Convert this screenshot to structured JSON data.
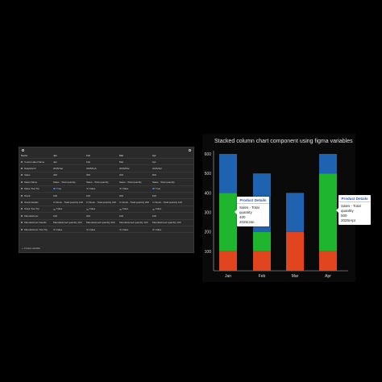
{
  "panel": {
    "columns": [
      "Name",
      "Jan",
      "Feb",
      "Mar",
      "Apr"
    ],
    "rows": [
      {
        "name": "X-axis Label Name",
        "cells": [
          "Jan",
          "Feb",
          "Mar",
          "Apr"
        ]
      },
      {
        "name": "DateMonth",
        "cells": [
          "2025/Jan",
          "2025/Feb",
          "2025/Mar",
          "2025/Apr"
        ]
      },
      {
        "name": "Sales",
        "cells": [
          "400",
          "300",
          "200",
          "500"
        ]
      },
      {
        "name": "Sales Name",
        "cells": [
          "Sales - Total quantity",
          "Sales - Total quantity",
          "Sales - Total quantity",
          "Sales - Total quantity"
        ]
      },
      {
        "name": "Sales Tool Tip",
        "toggle": true,
        "cells": [
          "True",
          "False",
          "False",
          "True"
        ]
      },
      {
        "name": "Stock",
        "cells": [
          "100",
          "100",
          "200",
          "100"
        ]
      },
      {
        "name": "Stock Details",
        "cells": [
          "In Stock - Total quantity 100",
          "In Stock - Total quantity 100",
          "In Stock - Total quantity 200",
          "In Stock - Total quantity 100"
        ]
      },
      {
        "name": "Stock Tool Tip",
        "toggle": true,
        "cells": [
          "False",
          "False",
          "False",
          "False"
        ]
      },
      {
        "name": "Manufacturer",
        "cells": [
          "100",
          "200",
          "100",
          "100"
        ]
      },
      {
        "name": "Manufacturer Details",
        "cells": [
          "Manufactured quantity 100",
          "Manufactured quantity 200",
          "Manufactured quantity 100",
          "Manufactured quantity 100"
        ]
      },
      {
        "name": "Manufacturer Tool Tip",
        "toggle": true,
        "cells": [
          "False",
          "False",
          "False",
          "False"
        ]
      }
    ],
    "footer": "+ Create variable"
  },
  "chart_data": {
    "type": "bar",
    "stacked": true,
    "title": "Stacked column chart component using figma variables",
    "categories": [
      "Jan",
      "Feb",
      "Mar",
      "Apr"
    ],
    "series": [
      {
        "values": [
          100,
          100,
          200,
          100
        ],
        "color": "#e0451f"
      },
      {
        "values": [
          300,
          100,
          0,
          400
        ],
        "color": "#1fb52e"
      },
      {
        "values": [
          200,
          300,
          200,
          100
        ],
        "color": "#1f62b0"
      }
    ],
    "y_ticks": [
      100,
      200,
      300,
      400,
      500,
      600
    ],
    "ylim": [
      0,
      600
    ],
    "grid": false
  },
  "tooltips": [
    {
      "head": "Product Details",
      "line1": "Sales - Total quantity",
      "line2": "400",
      "line3": "2025/Jan"
    },
    {
      "head": "Product Details",
      "line1": "Sales - Total quantity",
      "line2": "500",
      "line3": "2025/Apr"
    }
  ]
}
